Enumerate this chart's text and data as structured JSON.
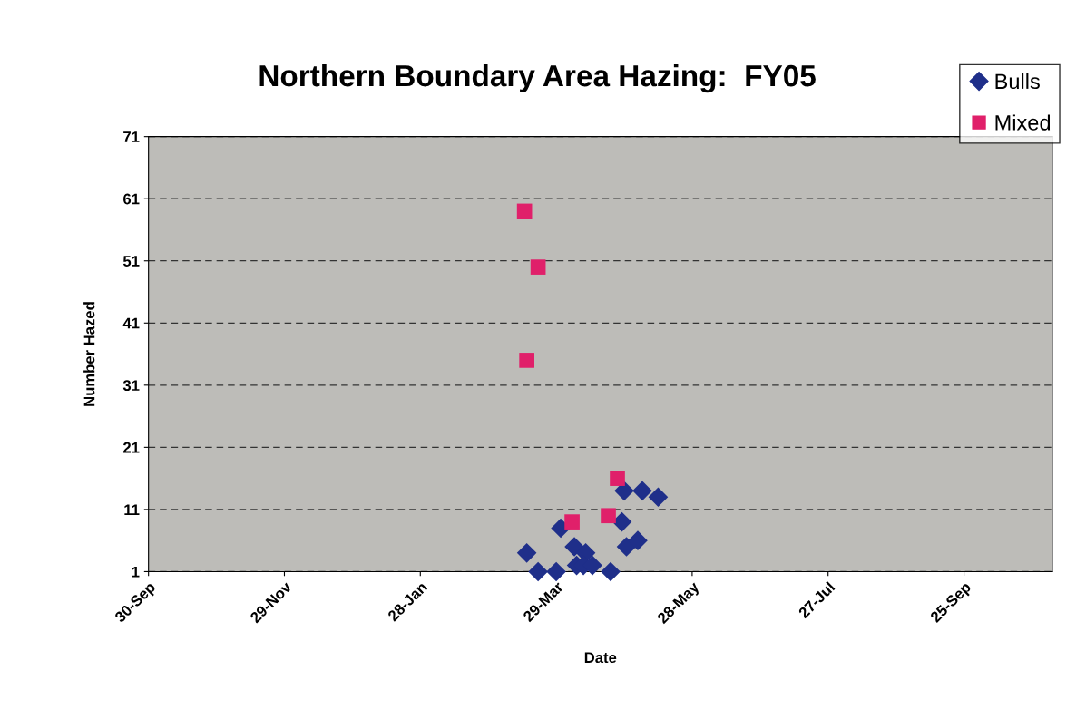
{
  "chart_data": {
    "type": "scatter",
    "title": "Northern Boundary Area Hazing:  FY05",
    "xlabel": "Date",
    "ylabel": "Number Hazed",
    "xlim": [
      "2004-09-30",
      "2005-11-03"
    ],
    "xticks": [
      {
        "value": "2004-09-30",
        "label": "30-Sep"
      },
      {
        "value": "2004-11-29",
        "label": "29-Nov"
      },
      {
        "value": "2005-01-28",
        "label": "28-Jan"
      },
      {
        "value": "2005-03-29",
        "label": "29-Mar"
      },
      {
        "value": "2005-05-28",
        "label": "28-May"
      },
      {
        "value": "2005-07-27",
        "label": "27-Jul"
      },
      {
        "value": "2005-09-25",
        "label": "25-Sep"
      }
    ],
    "ylim": [
      1,
      71
    ],
    "yticks": [
      1,
      11,
      21,
      31,
      41,
      51,
      61,
      71
    ],
    "grid": "y",
    "legend": "top right",
    "series": [
      {
        "name": "Bulls",
        "color": "#1f2f8a",
        "marker": "diamond",
        "x": [
          "2005-03-16",
          "2005-03-21",
          "2005-03-29",
          "2005-03-31",
          "2005-04-06",
          "2005-04-07",
          "2005-04-11",
          "2005-04-10",
          "2005-04-14",
          "2005-04-22",
          "2005-04-27",
          "2005-04-28",
          "2005-04-29",
          "2005-05-04",
          "2005-05-06",
          "2005-05-13"
        ],
        "values": [
          4,
          1,
          1,
          8,
          5,
          2,
          4,
          2,
          2,
          1,
          9,
          14,
          5,
          6,
          14,
          13
        ]
      },
      {
        "name": "Mixed",
        "color": "#e0206a",
        "marker": "square",
        "x": [
          "2005-03-15",
          "2005-03-21",
          "2005-03-16",
          "2005-04-05",
          "2005-04-21",
          "2005-04-25"
        ],
        "values": [
          59,
          50,
          35,
          9,
          10,
          16
        ]
      }
    ]
  }
}
